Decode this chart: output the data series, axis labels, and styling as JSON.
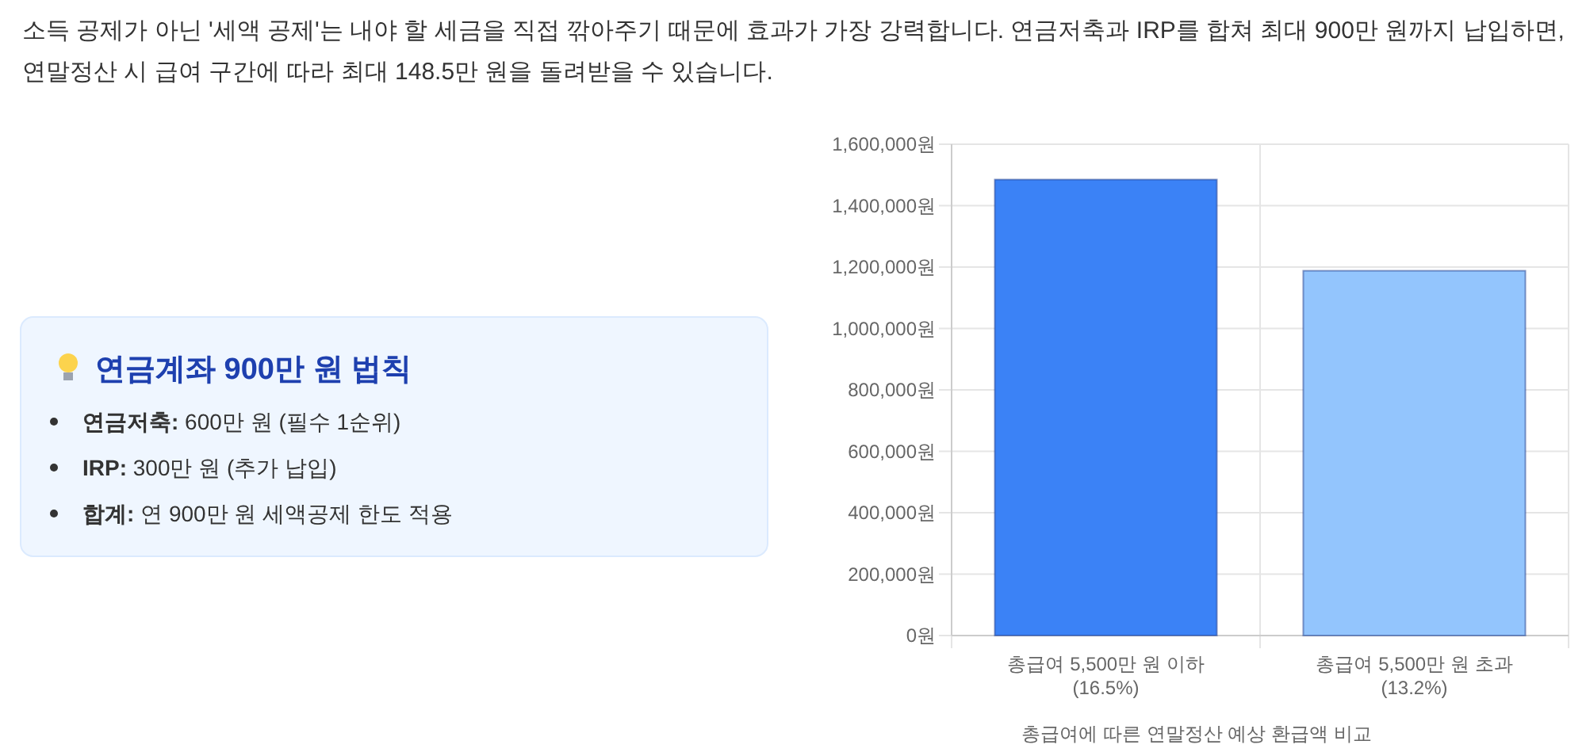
{
  "chart_data": [
    {
      "type": "other",
      "annotations": [
        "소득 공제가 아닌 '세액 공제'는 내야 할 세금을 직접 깎아주기 때문에 효과가 가장 강력합니다. 연금저축과 IRP를 합쳐 최대 900만 원까지 납입하면, 연말정산 시 급여 구간에 따라 최대 148.5만 원을 돌려받을 수 있습니다."
      ]
    },
    {
      "type": "other",
      "title": "연금계좌 900만 원 법칙",
      "annotations": [
        "연금저축: 600만 원 (필수 1순위)",
        "IRP: 300만 원 (추가 납입)",
        "합계: 연 900만 원 세액공제 한도 적용"
      ]
    },
    {
      "type": "bar",
      "categories": [
        "총급여 5,500만 원 이하\n(16.5%)",
        "총급여 5,500만 원 초과\n(13.2%)"
      ],
      "values": [
        1485000,
        1188000
      ],
      "colors": [
        "#3b82f6",
        "#93c5fd"
      ],
      "xlabel": "총급여에 따른 연말정산 예상 환급액 비교",
      "ylim": [
        0,
        1600000
      ],
      "yticks": [
        {
          "value": 0,
          "label": "0원"
        },
        {
          "value": 200000,
          "label": "200,000원"
        },
        {
          "value": 400000,
          "label": "400,000원"
        },
        {
          "value": 600000,
          "label": "600,000원"
        },
        {
          "value": 800000,
          "label": "800,000원"
        },
        {
          "value": 1000000,
          "label": "1,000,000원"
        },
        {
          "value": 1200000,
          "label": "1,200,000원"
        },
        {
          "value": 1400000,
          "label": "1,400,000원"
        },
        {
          "value": 1600000,
          "label": "1,600,000원"
        }
      ],
      "grid": true
    }
  ]
}
